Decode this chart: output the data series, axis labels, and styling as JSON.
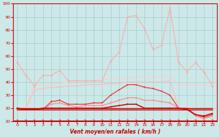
{
  "x": [
    0,
    1,
    2,
    3,
    4,
    5,
    6,
    7,
    8,
    9,
    10,
    11,
    12,
    13,
    14,
    15,
    16,
    17,
    18,
    19,
    20,
    21,
    22,
    23
  ],
  "line_rafales": [
    55,
    45,
    37,
    45,
    45,
    49,
    41,
    41,
    41,
    41,
    41,
    56,
    63,
    90,
    91,
    81,
    65,
    68,
    97,
    55,
    48,
    55,
    48,
    37
  ],
  "line_moy_dark": [
    20,
    19,
    19,
    20,
    20,
    20,
    20,
    20,
    20,
    20,
    20,
    21,
    22,
    23,
    23,
    20,
    20,
    20,
    20,
    20,
    19,
    15,
    14,
    16
  ],
  "line_moy_mid": [
    19,
    19,
    19,
    19,
    25,
    26,
    23,
    23,
    23,
    24,
    24,
    30,
    34,
    38,
    38,
    36,
    35,
    33,
    30,
    20,
    20,
    15,
    13,
    15
  ],
  "line_moy_light1": [
    19,
    19,
    19,
    19,
    23,
    24,
    22,
    21,
    22,
    22,
    22,
    24,
    26,
    28,
    28,
    26,
    26,
    25,
    24,
    20,
    20,
    14,
    12,
    14
  ],
  "line_trend1": [
    20,
    20,
    37,
    38,
    38,
    39,
    40,
    41,
    41,
    41,
    42,
    42,
    43,
    43,
    44,
    44,
    44,
    44,
    45,
    38,
    38,
    38,
    38,
    38
  ],
  "line_trend2": [
    20,
    20,
    34,
    35,
    36,
    36,
    37,
    37,
    38,
    38,
    38,
    39,
    39,
    40,
    40,
    40,
    40,
    40,
    41,
    20,
    20,
    20,
    20,
    20
  ],
  "line_flat1": [
    20,
    20,
    20,
    20,
    20,
    20,
    20,
    20,
    20,
    20,
    20,
    20,
    20,
    20,
    20,
    20,
    20,
    20,
    20,
    20,
    20,
    20,
    20,
    20
  ],
  "line_flat2": [
    19,
    19,
    19,
    19,
    19,
    19,
    19,
    19,
    19,
    19,
    19,
    19,
    19,
    19,
    19,
    19,
    19,
    19,
    19,
    19,
    19,
    19,
    19,
    19
  ],
  "xlim": [
    -0.5,
    23.5
  ],
  "ylim": [
    10,
    100
  ],
  "yticks": [
    10,
    20,
    30,
    40,
    50,
    60,
    70,
    80,
    90,
    100
  ],
  "xticks": [
    0,
    1,
    2,
    3,
    4,
    5,
    6,
    7,
    8,
    9,
    10,
    11,
    12,
    13,
    14,
    15,
    16,
    17,
    18,
    19,
    20,
    21,
    22,
    23
  ],
  "xlabel": "Vent moyen/en rafales ( km/h )",
  "bg_color": "#cce8e8",
  "grid_color": "#aacccc",
  "color_rafales": "#ffaaaa",
  "color_dark_red": "#cc0000",
  "color_mid_red": "#ee3333",
  "color_light_red": "#ff8888",
  "color_pale": "#ffbbbb",
  "color_trend": "#ffcccc",
  "arrow_color": "#cc4444"
}
